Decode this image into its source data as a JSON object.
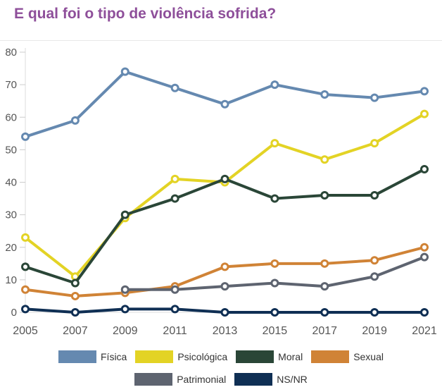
{
  "chart_data": {
    "type": "line",
    "title": "E qual foi o tipo de violência sofrida?",
    "x": [
      2005,
      2007,
      2009,
      2011,
      2013,
      2015,
      2017,
      2019,
      2021
    ],
    "ylim": [
      0,
      80
    ],
    "yticks": [
      0,
      10,
      20,
      30,
      40,
      50,
      60,
      70,
      80
    ],
    "xticks": [
      "2005",
      "2007",
      "2009",
      "2011",
      "2013",
      "2015",
      "2017",
      "2019",
      "2021"
    ],
    "legend_position": "bottom",
    "series": [
      {
        "name": "Física",
        "color": "#6589b0",
        "values": [
          54,
          59,
          74,
          69,
          64,
          70,
          67,
          66,
          68
        ]
      },
      {
        "name": "Psicológica",
        "color": "#e3d325",
        "values": [
          23,
          11,
          29,
          41,
          40,
          52,
          47,
          52,
          61
        ]
      },
      {
        "name": "Moral",
        "color": "#2a4637",
        "values": [
          14,
          9,
          30,
          35,
          41,
          35,
          36,
          36,
          44
        ]
      },
      {
        "name": "Sexual",
        "color": "#d08336",
        "values": [
          7,
          5,
          6,
          8,
          14,
          15,
          15,
          16,
          20
        ]
      },
      {
        "name": "Patrimonial",
        "color": "#5e6470",
        "values": [
          null,
          null,
          7,
          7,
          8,
          9,
          8,
          11,
          17
        ]
      },
      {
        "name": "NS/NR",
        "color": "#0f2f54",
        "values": [
          1,
          0,
          1,
          1,
          0,
          0,
          0,
          0,
          0
        ]
      }
    ]
  }
}
